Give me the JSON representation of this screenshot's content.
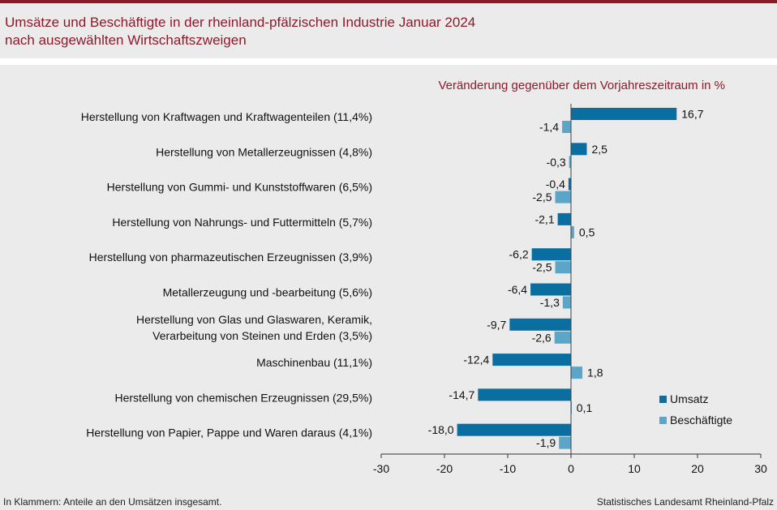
{
  "header": {
    "title_line1": "Umsätze und Beschäftigte in der rheinland-pfälzischen Industrie Januar 2024",
    "title_line2": "nach ausgewählten Wirtschaftszweigen"
  },
  "footer": {
    "note": "In Klammern: Anteile an den Umsätzen insgesamt.",
    "source": "Statistisches Landesamt Rheinland-Pfalz"
  },
  "colors": {
    "title": "#8b1a2b",
    "umsatz": "#0a6fa0",
    "beschaeftigte": "#5ba6c8"
  },
  "chart_data": {
    "type": "bar",
    "orientation": "horizontal",
    "subtitle": "Veränderung gegenüber dem Vorjahreszeitraum in %",
    "categories": [
      "Herstellung von Kraftwagen und Kraftwagenteilen (11,4%)",
      "Herstellung von Metallerzeugnissen (4,8%)",
      "Herstellung von Gummi- und Kunststoffwaren (6,5%)",
      "Herstellung von Nahrungs- und Futtermitteln (5,7%)",
      "Herstellung von pharmazeutischen Erzeugnissen (3,9%)",
      "Metallerzeugung und -bearbeitung (5,6%)",
      "Herstellung von Glas und Glaswaren, Keramik,\nVerarbeitung von Steinen und Erden (3,5%)",
      "Maschinenbau (11,1%)",
      "Herstellung von chemischen Erzeugnissen (29,5%)",
      "Herstellung von Papier, Pappe und Waren daraus (4,1%)"
    ],
    "series": [
      {
        "name": "Umsatz",
        "values": [
          16.7,
          2.5,
          -0.4,
          -2.1,
          -6.2,
          -6.4,
          -9.7,
          -12.4,
          -14.7,
          -18.0
        ]
      },
      {
        "name": "Beschäftigte",
        "values": [
          -1.4,
          -0.3,
          -2.5,
          0.5,
          -2.5,
          -1.3,
          -2.6,
          1.8,
          0.1,
          -1.9
        ]
      }
    ],
    "xlim": [
      -30,
      30
    ],
    "xticks": [
      -30,
      -20,
      -10,
      0,
      10,
      20,
      30
    ],
    "legend": "bottom-right",
    "grid": false
  }
}
